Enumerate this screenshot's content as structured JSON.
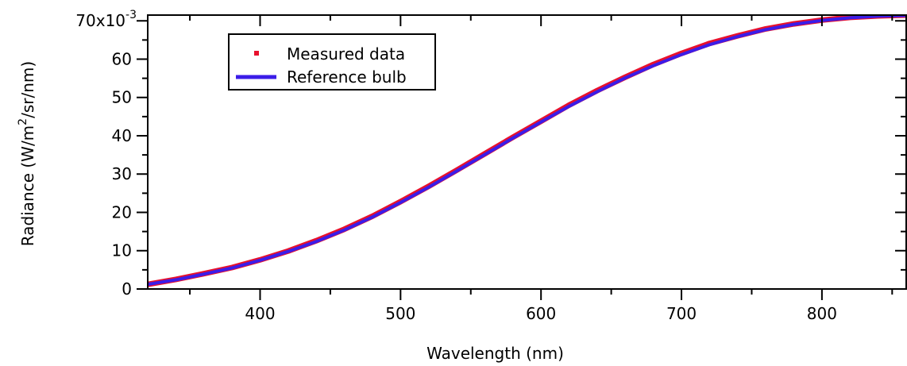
{
  "chart_data": {
    "type": "line",
    "xlabel": "Wavelength (nm)",
    "ylabel_parts": [
      "Radiance (W/m",
      "2",
      "/sr/nm)"
    ],
    "ylabel": "Radiance (W/m2/sr/nm)",
    "y_multiplier_parts": [
      "70x10",
      "-3"
    ],
    "xlim": [
      320,
      860
    ],
    "ylim": [
      0,
      71.5
    ],
    "x_ticks": [
      400,
      500,
      600,
      700,
      800
    ],
    "x_tick_labels": [
      "400",
      "500",
      "600",
      "700",
      "800"
    ],
    "y_ticks": [
      0,
      10,
      20,
      30,
      40,
      50,
      60
    ],
    "y_tick_labels": [
      "0",
      "10",
      "20",
      "30",
      "40",
      "50",
      "60"
    ],
    "y_top_tick": 70,
    "grid": false,
    "legend_position": "top-left",
    "series": [
      {
        "name": "Measured data",
        "style": "dots",
        "color": "#e8112d",
        "x": [
          320,
          340,
          360,
          380,
          400,
          420,
          440,
          460,
          480,
          500,
          520,
          540,
          560,
          580,
          600,
          620,
          640,
          660,
          680,
          700,
          720,
          740,
          760,
          780,
          800,
          820,
          840,
          860
        ],
        "y": [
          1.2,
          2.5,
          4.0,
          5.6,
          7.6,
          9.9,
          12.6,
          15.6,
          19.0,
          22.8,
          26.8,
          31.0,
          35.3,
          39.6,
          43.8,
          48.0,
          51.8,
          55.3,
          58.6,
          61.5,
          64.1,
          66.1,
          67.9,
          69.2,
          70.2,
          70.9,
          71.3,
          71.5
        ]
      },
      {
        "name": "Reference bulb",
        "style": "line",
        "color": "#3b1de8",
        "x": [
          320,
          340,
          360,
          380,
          400,
          420,
          440,
          460,
          480,
          500,
          520,
          540,
          560,
          580,
          600,
          620,
          640,
          660,
          680,
          700,
          720,
          740,
          760,
          780,
          800,
          820,
          840,
          860
        ],
        "y": [
          1.2,
          2.4,
          3.9,
          5.5,
          7.5,
          9.8,
          12.4,
          15.4,
          18.8,
          22.6,
          26.6,
          30.8,
          35.1,
          39.4,
          43.6,
          47.7,
          51.5,
          55.1,
          58.3,
          61.2,
          63.8,
          65.9,
          67.7,
          69.1,
          70.1,
          70.8,
          71.2,
          71.4
        ]
      }
    ]
  }
}
